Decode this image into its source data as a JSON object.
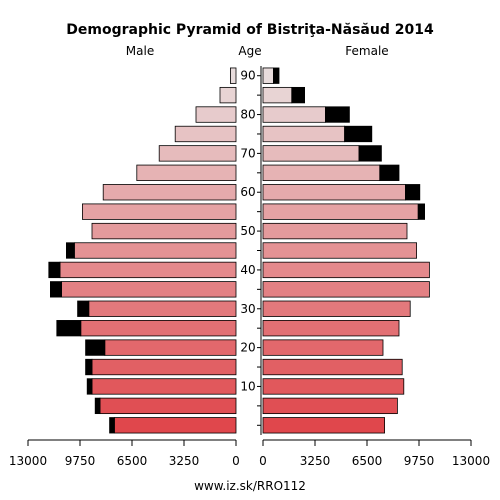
{
  "chart_data": {
    "type": "bar",
    "title": "Demographic Pyramid of Bistriţa-Năsăud 2014",
    "left_label": "Male",
    "center_label": "Age",
    "right_label": "Female",
    "footer": "www.iz.sk/RRO112",
    "xlim": [
      0,
      13000
    ],
    "x_ticks": [
      {
        "value": 13000,
        "label": "13000"
      },
      {
        "value": 9750,
        "label": "9750"
      },
      {
        "value": 6500,
        "label": "6500"
      },
      {
        "value": 3250,
        "label": "3250"
      },
      {
        "value": 0,
        "label": "0"
      }
    ],
    "age_ticks": [
      {
        "age": 90,
        "label": "90"
      },
      {
        "age": 80,
        "label": "80"
      },
      {
        "age": 70,
        "label": "70"
      },
      {
        "age": 60,
        "label": "60"
      },
      {
        "age": 50,
        "label": "50"
      },
      {
        "age": 40,
        "label": "40"
      },
      {
        "age": 30,
        "label": "30"
      },
      {
        "age": 20,
        "label": "20"
      },
      {
        "age": 10,
        "label": "10"
      }
    ],
    "age_groups": [
      "0-4",
      "5-9",
      "10-14",
      "15-19",
      "20-24",
      "25-29",
      "30-34",
      "35-39",
      "40-44",
      "45-49",
      "50-54",
      "55-59",
      "60-64",
      "65-69",
      "70-74",
      "75-79",
      "80-84",
      "85-89",
      "90+"
    ],
    "series": [
      {
        "name": "Male",
        "values": [
          7600,
          8500,
          9000,
          9000,
          8200,
          9700,
          9200,
          10900,
          11000,
          10100,
          9000,
          9600,
          8300,
          6200,
          4800,
          3800,
          2500,
          1000,
          350
        ],
        "excess": [
          300,
          300,
          300,
          400,
          1200,
          1500,
          700,
          700,
          700,
          500,
          0,
          0,
          0,
          0,
          0,
          0,
          0,
          0,
          0
        ]
      },
      {
        "name": "Female",
        "values": [
          7600,
          8400,
          8800,
          8700,
          7500,
          8500,
          9200,
          10400,
          10400,
          9600,
          9000,
          9700,
          8900,
          7300,
          6000,
          5100,
          3900,
          1800,
          650
        ],
        "excess": [
          0,
          0,
          0,
          0,
          0,
          0,
          0,
          0,
          0,
          0,
          0,
          400,
          900,
          1200,
          1400,
          1700,
          1500,
          800,
          350
        ]
      }
    ],
    "colors": {
      "young": "#e0474c",
      "old": "#e8dcdc",
      "excess": "#000000",
      "outline": "#000000"
    }
  }
}
